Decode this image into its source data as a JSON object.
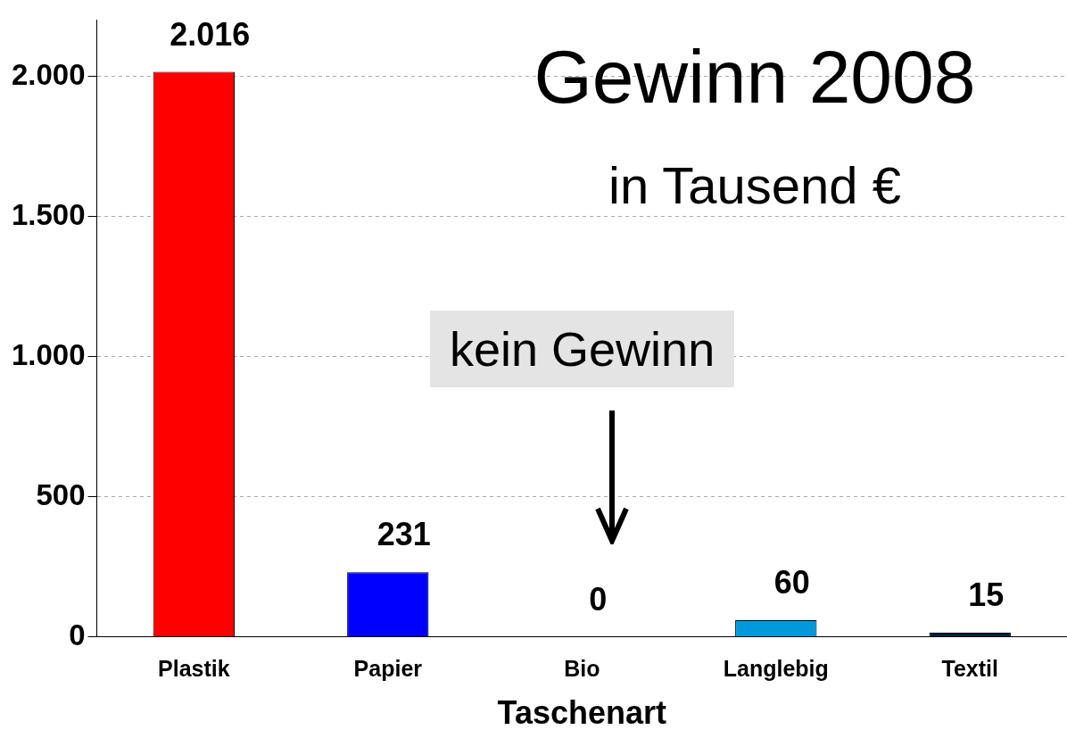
{
  "chart_data": {
    "type": "bar",
    "title": "Gewinn 2008",
    "subtitle": "in Tausend €",
    "xlabel": "Taschenart",
    "categories": [
      "Plastik",
      "Papier",
      "Bio",
      "Langlebig",
      "Textil"
    ],
    "values": [
      2016,
      231,
      0,
      60,
      15
    ],
    "value_labels": [
      "2.016",
      "231",
      "0",
      "60",
      "15"
    ],
    "colors": [
      "#ff0000",
      "#0000ff",
      "#00c000",
      "#0099dd",
      "#002244"
    ],
    "ylim": [
      0,
      2200
    ],
    "yticks": [
      0,
      {
        "value": 500,
        "label": "500"
      },
      {
        "value": 1000,
        "label": "1.000"
      },
      {
        "value": 1500,
        "label": "1.500"
      },
      {
        "value": 2000,
        "label": "2.000"
      }
    ],
    "grid": "y",
    "annotations": [
      "kein Gewinn"
    ]
  }
}
